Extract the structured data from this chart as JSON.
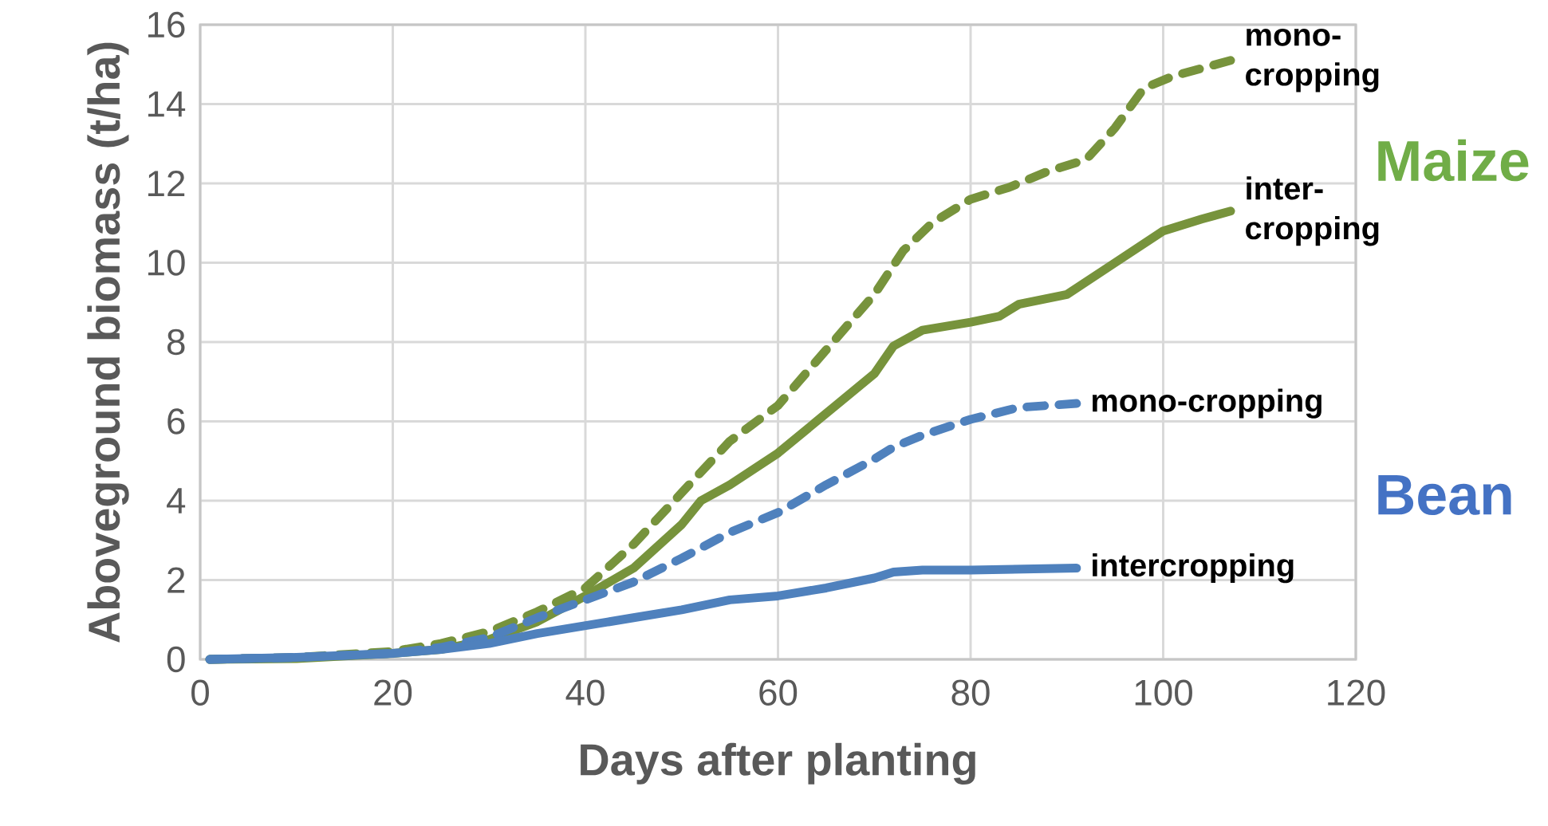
{
  "chart_data": {
    "type": "line",
    "xlabel": "Days after planting",
    "ylabel": "Aboveground biomass (t/ha)",
    "xlim": [
      0,
      120
    ],
    "xticks": [
      0,
      20,
      40,
      60,
      80,
      100,
      120
    ],
    "ylim": [
      0,
      16
    ],
    "yticks": [
      0,
      2,
      4,
      6,
      8,
      10,
      12,
      14,
      16
    ],
    "grid": true,
    "annotations": [
      "Maize",
      "Bean"
    ],
    "series": [
      {
        "name": "mono-cropping",
        "color": "#77933c",
        "line_style": "dashed",
        "x": [
          1,
          10,
          20,
          25,
          30,
          35,
          40,
          45,
          50,
          55,
          60,
          65,
          70,
          73,
          76,
          80,
          84,
          88,
          92,
          95,
          98,
          101,
          104,
          107
        ],
        "values": [
          0,
          0.05,
          0.2,
          0.4,
          0.7,
          1.2,
          1.8,
          2.9,
          4.2,
          5.5,
          6.4,
          7.8,
          9.2,
          10.3,
          11,
          11.6,
          11.9,
          12.3,
          12.6,
          13.4,
          14.4,
          14.7,
          14.9,
          15.1
        ]
      },
      {
        "name": "inter-cropping",
        "color": "#77933c",
        "line_style": "solid",
        "x": [
          1,
          10,
          20,
          25,
          30,
          35,
          40,
          45,
          50,
          52,
          55,
          60,
          65,
          70,
          72,
          75,
          80,
          83,
          85,
          90,
          95,
          100,
          104,
          107
        ],
        "values": [
          0,
          0.02,
          0.15,
          0.25,
          0.5,
          0.95,
          1.6,
          2.3,
          3.4,
          4.0,
          4.4,
          5.2,
          6.2,
          7.2,
          7.9,
          8.3,
          8.5,
          8.65,
          8.95,
          9.2,
          10.0,
          10.8,
          11.1,
          11.3
        ]
      },
      {
        "name": "mono-cropping",
        "color": "#4f81bd",
        "line_style": "dashed",
        "x": [
          1,
          10,
          20,
          25,
          30,
          35,
          40,
          45,
          50,
          55,
          60,
          65,
          70,
          72,
          75,
          80,
          85,
          91
        ],
        "values": [
          0,
          0.05,
          0.15,
          0.3,
          0.55,
          1.05,
          1.5,
          1.95,
          2.55,
          3.2,
          3.7,
          4.4,
          5.05,
          5.35,
          5.65,
          6.05,
          6.35,
          6.45
        ]
      },
      {
        "name": "intercropping",
        "color": "#4f81bd",
        "line_style": "solid",
        "x": [
          1,
          10,
          20,
          25,
          30,
          35,
          40,
          45,
          50,
          55,
          60,
          65,
          70,
          72,
          75,
          80,
          91
        ],
        "values": [
          0,
          0.05,
          0.15,
          0.25,
          0.4,
          0.65,
          0.85,
          1.05,
          1.25,
          1.5,
          1.6,
          1.8,
          2.05,
          2.2,
          2.25,
          2.25,
          2.3
        ]
      }
    ]
  }
}
